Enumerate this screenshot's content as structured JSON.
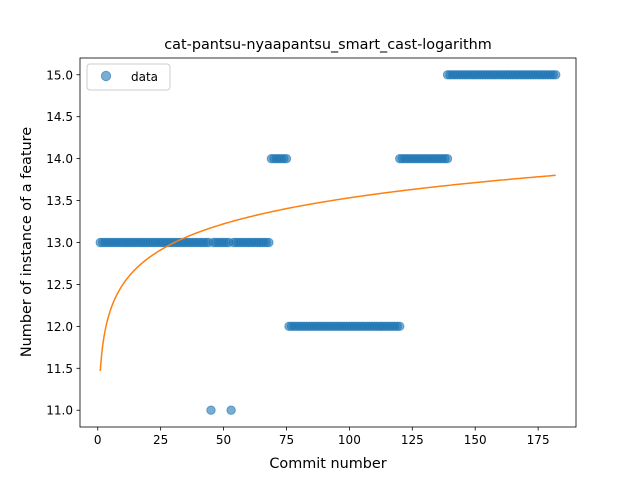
{
  "chart_data": {
    "type": "scatter",
    "title": "cat-pantsu-nyaapantsu_smart_cast-logarithm",
    "xlabel": "Commit number",
    "ylabel": "Number of instance of a feature",
    "xlim": [
      -7.05,
      190.05
    ],
    "ylim": [
      10.8,
      15.2
    ],
    "xticks": [
      0,
      25,
      50,
      75,
      100,
      125,
      150,
      175
    ],
    "yticks": [
      11.0,
      11.5,
      12.0,
      12.5,
      13.0,
      13.5,
      14.0,
      14.5,
      15.0
    ],
    "ytick_labels": [
      "11.0",
      "11.5",
      "12.0",
      "12.5",
      "13.0",
      "13.5",
      "14.0",
      "14.5",
      "15.0"
    ],
    "grid": false,
    "legend": {
      "position": "top-left",
      "entries": [
        "data"
      ]
    },
    "series": [
      {
        "name": "data",
        "kind": "points",
        "color": "#1f77b4",
        "segments": [
          {
            "x_start": 1,
            "x_end": 44,
            "y": 13.0
          },
          {
            "x_start": 45,
            "x_end": 45,
            "y": 11.0
          },
          {
            "x_start": 46,
            "x_end": 52,
            "y": 13.0
          },
          {
            "x_start": 53,
            "x_end": 53,
            "y": 11.0
          },
          {
            "x_start": 54,
            "x_end": 68,
            "y": 13.0
          },
          {
            "x_start": 69,
            "x_end": 75,
            "y": 14.0
          },
          {
            "x_start": 76,
            "x_end": 120,
            "y": 12.0
          },
          {
            "x_start": 120,
            "x_end": 139,
            "y": 14.0
          },
          {
            "x_start": 139,
            "x_end": 182,
            "y": 15.0
          }
        ]
      },
      {
        "kind": "line",
        "color": "#ff7f0e",
        "model": "logarithmic",
        "a": 11.4685,
        "b": 0.4482,
        "x_range": [
          1,
          182
        ]
      }
    ]
  }
}
